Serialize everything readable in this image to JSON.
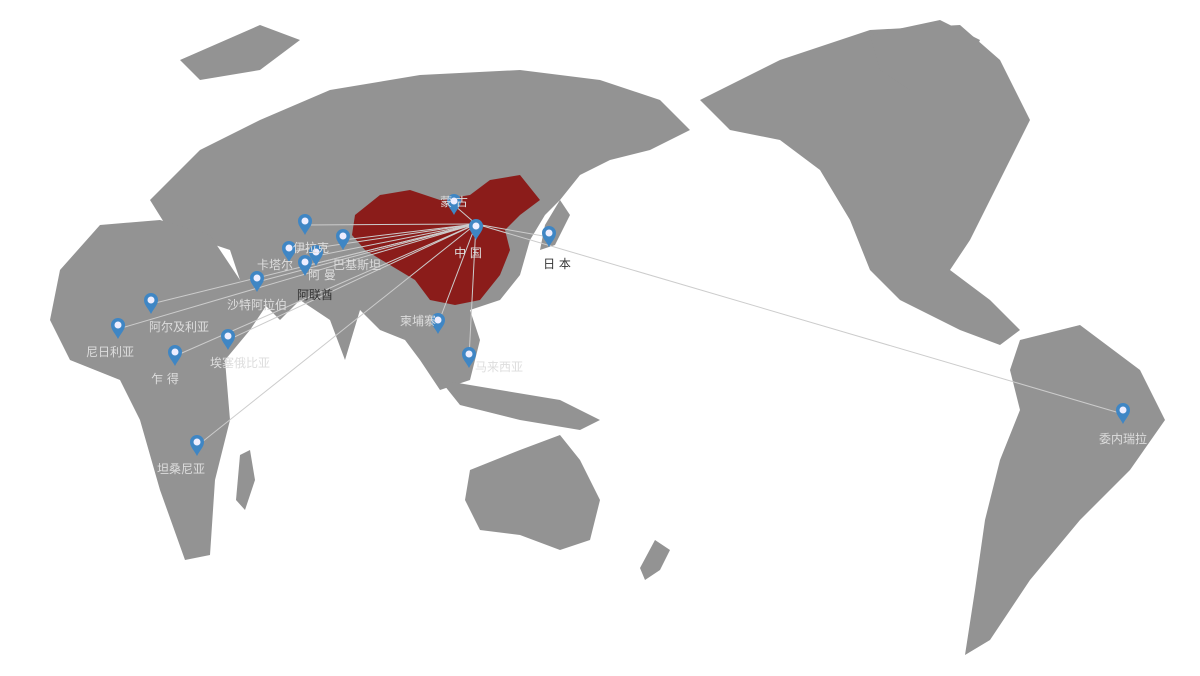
{
  "colors": {
    "land": "#939393",
    "highlight": "#8b1c1a",
    "pin": "#3f86c4",
    "line": "#cccccc"
  },
  "origin": "中 国",
  "destinations": [
    {
      "name": "蒙 古"
    },
    {
      "name": "日 本"
    },
    {
      "name": "伊拉克"
    },
    {
      "name": "卡塔尔"
    },
    {
      "name": "巴基斯坦"
    },
    {
      "name": "阿 曼"
    },
    {
      "name": "阿联酋"
    },
    {
      "name": "沙特阿拉伯"
    },
    {
      "name": "阿尔及利亚"
    },
    {
      "name": "尼日利亚"
    },
    {
      "name": "埃塞俄比亚"
    },
    {
      "name": "乍 得"
    },
    {
      "name": "坦桑尼亚"
    },
    {
      "name": "柬埔寨"
    },
    {
      "name": "马来西亚"
    },
    {
      "name": "委内瑞拉"
    }
  ]
}
